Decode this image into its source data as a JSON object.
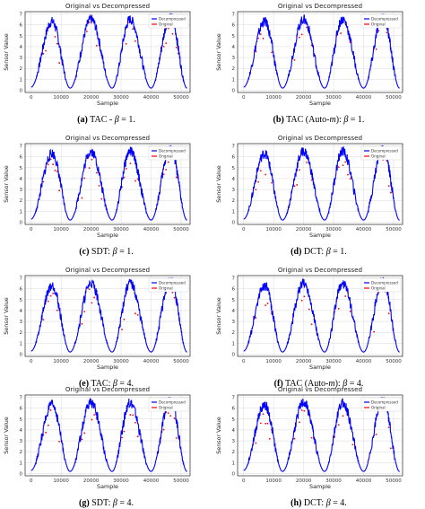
{
  "figure": {
    "panels": [
      {
        "id": "a",
        "tag": "(a)",
        "caption_pre": "TAC - ",
        "caption_beta": "β",
        "caption_post": " = 1.",
        "caption_it": ""
      },
      {
        "id": "b",
        "tag": "(b)",
        "caption_pre": "TAC (Auto-",
        "caption_it": "m",
        "caption_mid": "): ",
        "caption_beta": "β",
        "caption_post": " = 1."
      },
      {
        "id": "c",
        "tag": "(c)",
        "caption_pre": "SDT: ",
        "caption_beta": "β",
        "caption_post": " = 1.",
        "caption_it": ""
      },
      {
        "id": "d",
        "tag": "(d)",
        "caption_pre": "DCT: ",
        "caption_beta": "β",
        "caption_post": " = 1.",
        "caption_it": ""
      },
      {
        "id": "e",
        "tag": "(e)",
        "caption_pre": "TAC: ",
        "caption_beta": "β",
        "caption_post": " = 4.",
        "caption_it": ""
      },
      {
        "id": "f",
        "tag": "(f)",
        "caption_pre": "TAC (Auto-",
        "caption_it": "m",
        "caption_mid": "): ",
        "caption_beta": "β",
        "caption_post": " = 4."
      },
      {
        "id": "g",
        "tag": "(g)",
        "caption_pre": "SDT: ",
        "caption_beta": "β",
        "caption_post": " = 4.",
        "caption_it": ""
      },
      {
        "id": "h",
        "tag": "(h)",
        "caption_pre": "DCT: ",
        "caption_beta": "β",
        "caption_post": " = 4.",
        "caption_it": ""
      }
    ]
  },
  "chart_data": [
    {
      "type": "line",
      "panel": "a",
      "title": "Original vs Decompressed",
      "xlabel": "Sample",
      "ylabel": "Sensor Value",
      "xticks": [
        "0",
        "10000",
        "20000",
        "30000",
        "40000",
        "50000"
      ],
      "yticks": [
        "0",
        "1",
        "2",
        "3",
        "4",
        "5",
        "6",
        "7"
      ],
      "xlim": [
        -2000,
        53000
      ],
      "ylim": [
        -0.2,
        7.2
      ],
      "grid": true,
      "legend": "top-right",
      "series": [
        {
          "name": "Decompressed",
          "color": "#0000ff"
        },
        {
          "name": "Original",
          "color": "#ff0000"
        }
      ],
      "x": [
        0,
        7000,
        13000,
        20000,
        27000,
        33000,
        40000,
        46500,
        52000
      ],
      "y": [
        0.3,
        6.3,
        0.2,
        6.5,
        0.2,
        6.5,
        0.2,
        6.8,
        0.2
      ]
    },
    {
      "type": "line",
      "panel": "b",
      "title": "Original vs Decompressed",
      "xlabel": "Sample",
      "ylabel": "Sensor Value",
      "xticks": [
        "0",
        "10000",
        "20000",
        "30000",
        "40000",
        "50000"
      ],
      "yticks": [
        "0",
        "1",
        "2",
        "3",
        "4",
        "5",
        "6",
        "7"
      ],
      "xlim": [
        -2000,
        53000
      ],
      "ylim": [
        -0.2,
        7.2
      ],
      "grid": true,
      "legend": "top-right",
      "series": [
        {
          "name": "Decompressed",
          "color": "#0000ff"
        },
        {
          "name": "Original",
          "color": "#ff0000"
        }
      ],
      "x": [
        0,
        7000,
        13000,
        20000,
        27000,
        33000,
        40000,
        46500,
        52000
      ],
      "y": [
        0.3,
        6.3,
        0.2,
        6.5,
        0.2,
        6.5,
        0.2,
        6.8,
        0.2
      ]
    },
    {
      "type": "line",
      "panel": "c",
      "title": "Original vs Decompressed",
      "xlabel": "Sample",
      "ylabel": "Sensor Value",
      "xticks": [
        "0",
        "10000",
        "20000",
        "30000",
        "40000",
        "50000"
      ],
      "yticks": [
        "0",
        "1",
        "2",
        "3",
        "4",
        "5",
        "6",
        "7"
      ],
      "xlim": [
        -2000,
        53000
      ],
      "ylim": [
        -0.2,
        7.2
      ],
      "grid": true,
      "legend": "top-right",
      "series": [
        {
          "name": "Decompressed",
          "color": "#0000ff"
        },
        {
          "name": "Original",
          "color": "#ff0000"
        }
      ],
      "x": [
        0,
        7000,
        13000,
        20000,
        27000,
        33000,
        40000,
        46500,
        52000
      ],
      "y": [
        0.3,
        6.3,
        0.2,
        6.5,
        0.2,
        6.5,
        0.2,
        6.8,
        0.2
      ]
    },
    {
      "type": "line",
      "panel": "d",
      "title": "Original vs Decompressed",
      "xlabel": "Sample",
      "ylabel": "Sensor Value",
      "xticks": [
        "0",
        "10000",
        "20000",
        "30000",
        "40000",
        "50000"
      ],
      "yticks": [
        "0",
        "1",
        "2",
        "3",
        "4",
        "5",
        "6",
        "7"
      ],
      "xlim": [
        -2000,
        53000
      ],
      "ylim": [
        -0.2,
        7.2
      ],
      "grid": true,
      "legend": "top-right",
      "series": [
        {
          "name": "Decompressed",
          "color": "#0000ff"
        },
        {
          "name": "Original",
          "color": "#ff0000"
        }
      ],
      "x": [
        0,
        7000,
        13000,
        20000,
        27000,
        33000,
        40000,
        46500,
        52000
      ],
      "y": [
        0.3,
        6.3,
        0.2,
        6.5,
        0.2,
        6.5,
        0.2,
        6.8,
        0.2
      ]
    },
    {
      "type": "line",
      "panel": "e",
      "title": "Original vs Decompressed",
      "xlabel": "Sample",
      "ylabel": "Sensor Value",
      "xticks": [
        "0",
        "10000",
        "20000",
        "30000",
        "40000",
        "50000"
      ],
      "yticks": [
        "0",
        "1",
        "2",
        "3",
        "4",
        "5",
        "6",
        "7"
      ],
      "xlim": [
        -2000,
        53000
      ],
      "ylim": [
        -0.2,
        7.2
      ],
      "grid": true,
      "legend": "top-right",
      "series": [
        {
          "name": "Decompressed",
          "color": "#0000ff"
        },
        {
          "name": "Original",
          "color": "#ff0000"
        }
      ],
      "x": [
        0,
        7000,
        13000,
        20000,
        27000,
        33000,
        40000,
        46500,
        52000
      ],
      "y": [
        0.3,
        6.3,
        0.2,
        6.5,
        0.2,
        6.5,
        0.2,
        6.8,
        0.2
      ]
    },
    {
      "type": "line",
      "panel": "f",
      "title": "Original vs Decompressed",
      "xlabel": "Sample",
      "ylabel": "Sensor Value",
      "xticks": [
        "0",
        "10000",
        "20000",
        "30000",
        "40000",
        "50000"
      ],
      "yticks": [
        "0",
        "1",
        "2",
        "3",
        "4",
        "5",
        "6",
        "7"
      ],
      "xlim": [
        -2000,
        53000
      ],
      "ylim": [
        -0.2,
        7.2
      ],
      "grid": true,
      "legend": "top-right",
      "series": [
        {
          "name": "Decompressed",
          "color": "#0000ff"
        },
        {
          "name": "Original",
          "color": "#ff0000"
        }
      ],
      "x": [
        0,
        7000,
        13000,
        20000,
        27000,
        33000,
        40000,
        46500,
        52000
      ],
      "y": [
        0.3,
        6.3,
        0.2,
        6.5,
        0.2,
        6.5,
        0.2,
        6.8,
        0.2
      ]
    },
    {
      "type": "line",
      "panel": "g",
      "title": "Original vs Decompressed",
      "xlabel": "Sample",
      "ylabel": "Sensor Value",
      "xticks": [
        "0",
        "10000",
        "20000",
        "30000",
        "40000",
        "50000"
      ],
      "yticks": [
        "0",
        "1",
        "2",
        "3",
        "4",
        "5",
        "6",
        "7"
      ],
      "xlim": [
        -2000,
        53000
      ],
      "ylim": [
        -0.2,
        7.2
      ],
      "grid": true,
      "legend": "top-right",
      "series": [
        {
          "name": "Decompressed",
          "color": "#0000ff"
        },
        {
          "name": "Original",
          "color": "#ff0000"
        }
      ],
      "x": [
        0,
        7000,
        13000,
        20000,
        27000,
        33000,
        40000,
        46500,
        52000
      ],
      "y": [
        0.3,
        6.3,
        0.2,
        6.5,
        0.2,
        6.5,
        0.2,
        6.8,
        0.2
      ]
    },
    {
      "type": "line",
      "panel": "h",
      "title": "Original vs Decompressed",
      "xlabel": "Sample",
      "ylabel": "Sensor Value",
      "xticks": [
        "0",
        "10000",
        "20000",
        "30000",
        "40000",
        "50000"
      ],
      "yticks": [
        "0",
        "1",
        "2",
        "3",
        "4",
        "5",
        "6",
        "7"
      ],
      "xlim": [
        -2000,
        53000
      ],
      "ylim": [
        -0.2,
        7.2
      ],
      "grid": true,
      "legend": "top-right",
      "series": [
        {
          "name": "Decompressed",
          "color": "#0000ff"
        },
        {
          "name": "Original",
          "color": "#ff0000"
        }
      ],
      "x": [
        0,
        7000,
        13000,
        20000,
        27000,
        33000,
        40000,
        46500,
        52000
      ],
      "y": [
        0.3,
        6.3,
        0.2,
        6.5,
        0.2,
        6.5,
        0.2,
        6.8,
        0.2
      ]
    }
  ]
}
